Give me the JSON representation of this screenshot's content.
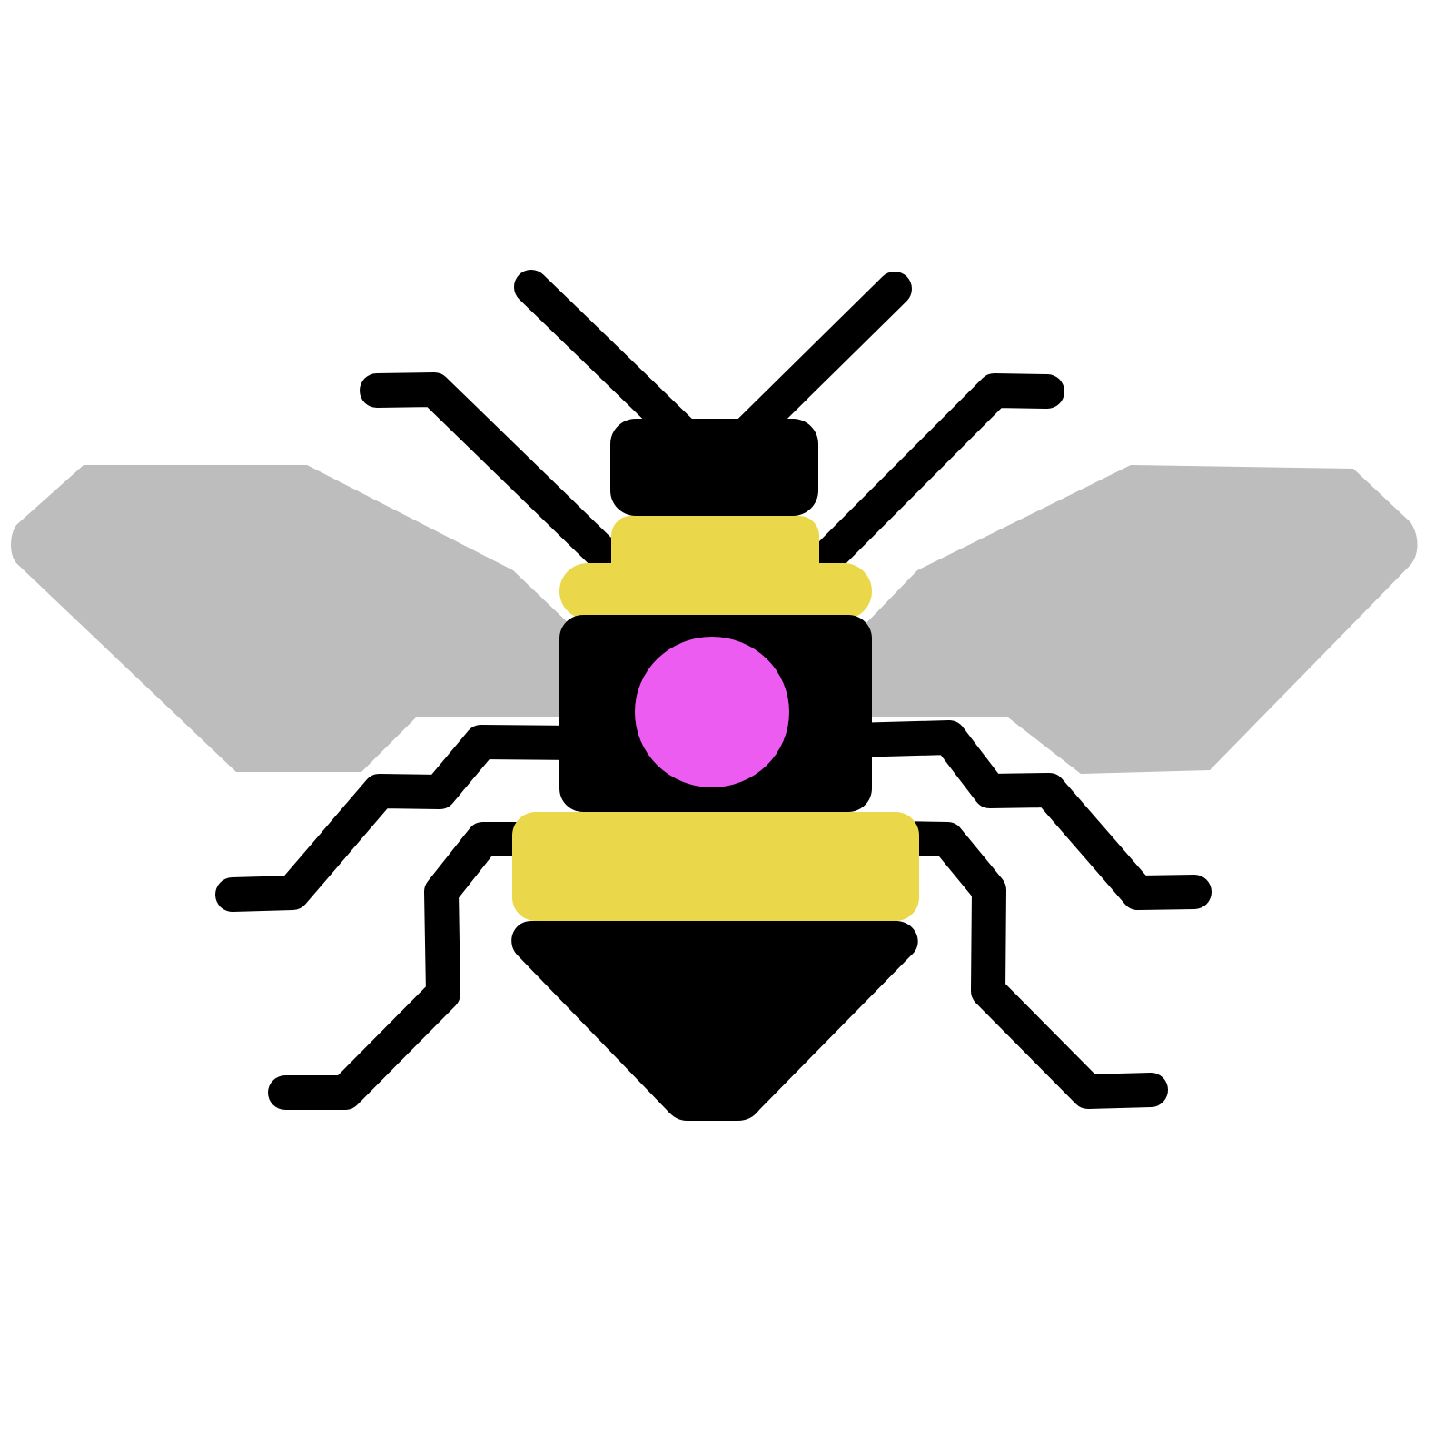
{
  "subject": "bee-icon",
  "colors": {
    "background": "#ffffff",
    "outline": "#000000",
    "wing": "#bdbdbd",
    "stripe": "#ead84a",
    "spot": "#ec5cf1"
  }
}
